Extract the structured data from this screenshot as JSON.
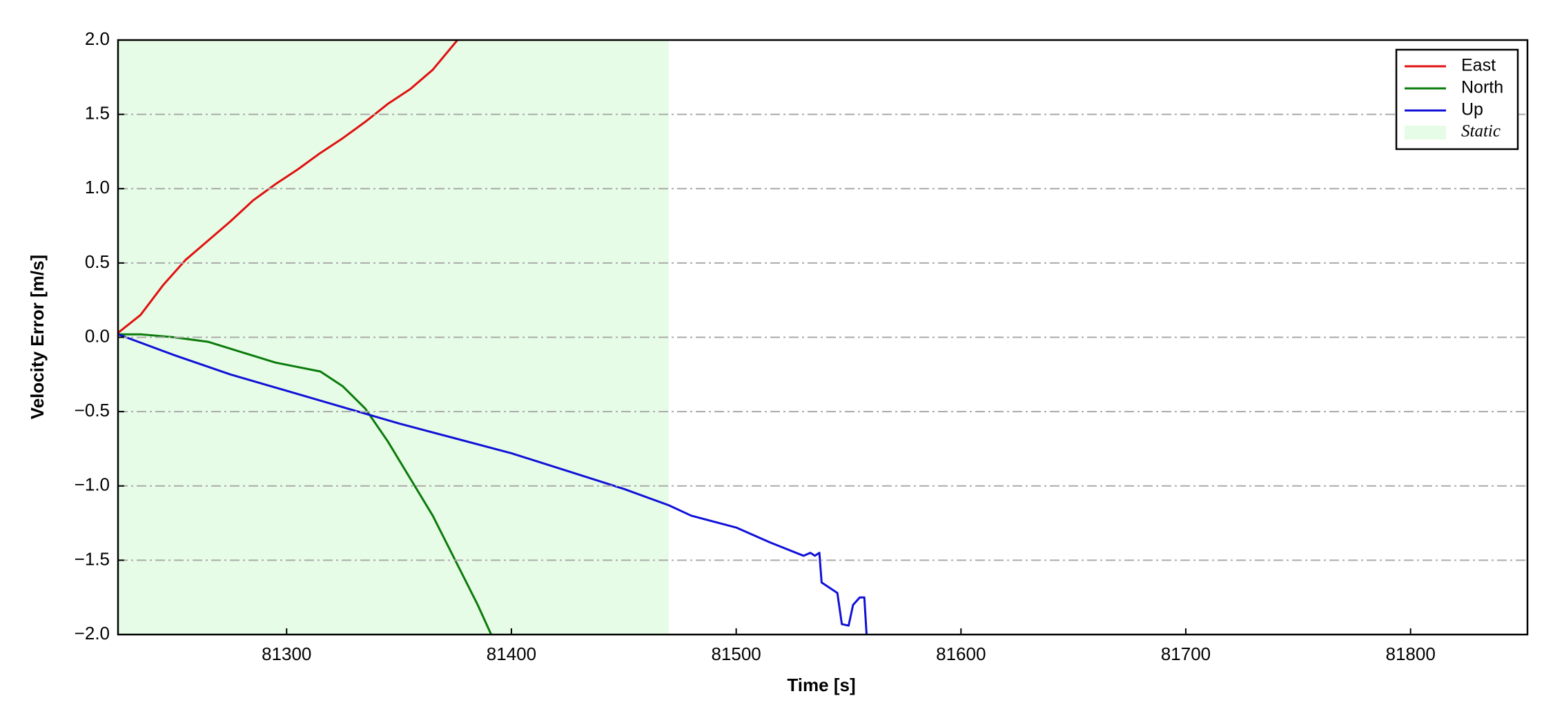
{
  "chart_data": {
    "type": "line",
    "xlabel": "Time [s]",
    "ylabel": "Velocity Error [m/s]",
    "xlim": [
      81225,
      81852
    ],
    "ylim": [
      -2.0,
      2.0
    ],
    "xticks": [
      81300,
      81400,
      81500,
      81600,
      81700,
      81800
    ],
    "yticks": [
      {
        "value": -2.0,
        "label": "−2.0"
      },
      {
        "value": -1.5,
        "label": "−1.5"
      },
      {
        "value": -1.0,
        "label": "−1.0"
      },
      {
        "value": -0.5,
        "label": "−0.5"
      },
      {
        "value": 0.0,
        "label": "0.0"
      },
      {
        "value": 0.5,
        "label": "0.5"
      },
      {
        "value": 1.0,
        "label": "1.0"
      },
      {
        "value": 1.5,
        "label": "1.5"
      },
      {
        "value": 2.0,
        "label": "2.0"
      }
    ],
    "grid": true,
    "legend": "upper right",
    "shaded_regions": [
      {
        "name": "Static",
        "x": [
          81225,
          81470
        ],
        "color": "#e6fce6"
      }
    ],
    "series": [
      {
        "name": "East",
        "color": "#e01010",
        "x": [
          81225,
          81235,
          81245,
          81255,
          81265,
          81275,
          81285,
          81295,
          81305,
          81315,
          81325,
          81335,
          81345,
          81355,
          81365,
          81376
        ],
        "values": [
          0.03,
          0.15,
          0.35,
          0.52,
          0.65,
          0.78,
          0.92,
          1.03,
          1.13,
          1.24,
          1.34,
          1.45,
          1.57,
          1.67,
          1.8,
          2.0
        ]
      },
      {
        "name": "North",
        "color": "#0a7a0a",
        "x": [
          81225,
          81235,
          81250,
          81265,
          81280,
          81295,
          81305,
          81315,
          81325,
          81335,
          81345,
          81355,
          81365,
          81375,
          81385,
          81391
        ],
        "values": [
          0.02,
          0.02,
          0.0,
          -0.03,
          -0.1,
          -0.17,
          -0.2,
          -0.23,
          -0.33,
          -0.48,
          -0.7,
          -0.95,
          -1.2,
          -1.5,
          -1.8,
          -2.0
        ]
      },
      {
        "name": "Up",
        "color": "#1010d8",
        "x": [
          81225,
          81250,
          81275,
          81300,
          81325,
          81350,
          81375,
          81400,
          81425,
          81450,
          81470,
          81480,
          81500,
          81515,
          81530,
          81533,
          81535,
          81537,
          81538,
          81545,
          81547,
          81550,
          81552,
          81555,
          81557,
          81558
        ],
        "values": [
          0.02,
          -0.12,
          -0.25,
          -0.36,
          -0.47,
          -0.58,
          -0.68,
          -0.78,
          -0.9,
          -1.02,
          -1.13,
          -1.2,
          -1.28,
          -1.38,
          -1.47,
          -1.45,
          -1.47,
          -1.45,
          -1.65,
          -1.72,
          -1.93,
          -1.94,
          -1.8,
          -1.75,
          -1.75,
          -2.0
        ]
      }
    ]
  }
}
